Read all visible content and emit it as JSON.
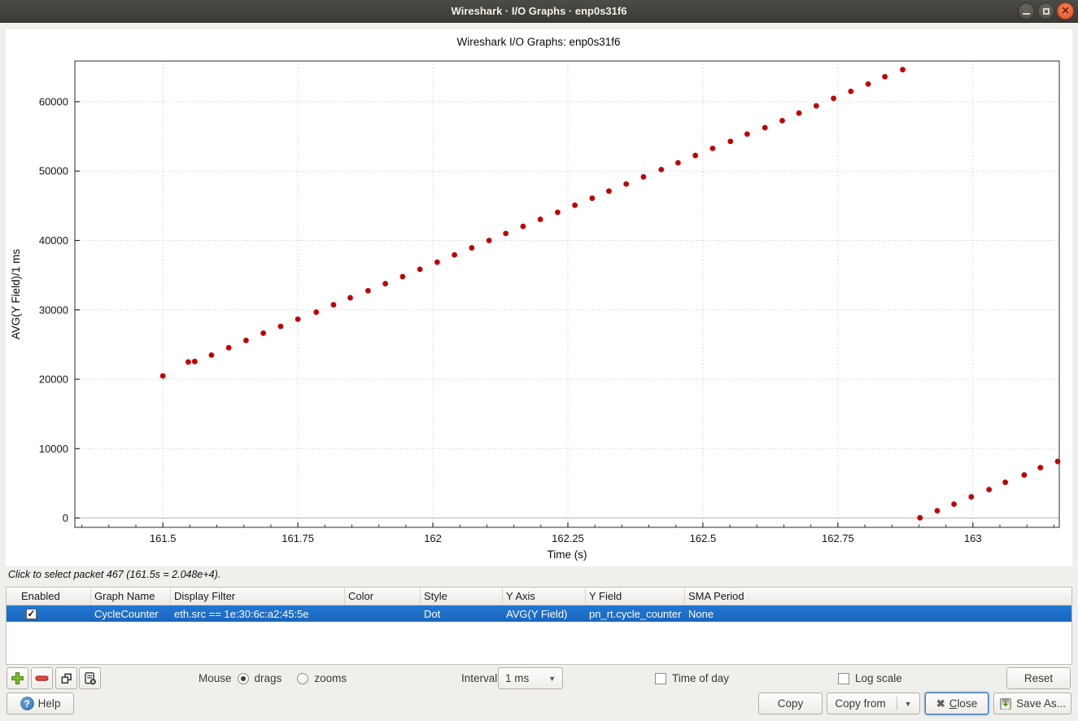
{
  "window": {
    "title": "Wireshark · I/O Graphs · enp0s31f6",
    "controls": {
      "minimize": "minimize",
      "maximize": "maximize",
      "close": "close"
    }
  },
  "chart_data": {
    "type": "scatter",
    "title": "Wireshark I/O Graphs: enp0s31f6",
    "xlabel": "Time (s)",
    "ylabel": "AVG(Y Field)/1 ms",
    "xlim": [
      161.337,
      163.16
    ],
    "ylim": [
      -1340,
      65860
    ],
    "x_major_ticks": [
      161.5,
      161.75,
      162,
      162.25,
      162.5,
      162.75,
      163
    ],
    "x_tick_labels": [
      "161.5",
      "161.75",
      "162",
      "162.25",
      "162.5",
      "162.75",
      "163"
    ],
    "x_minor_step": 0.05,
    "y_major_ticks": [
      0,
      10000,
      20000,
      30000,
      40000,
      50000,
      60000
    ],
    "grid": "dotted",
    "legend": "none",
    "point_color": "#c00303",
    "series": [
      {
        "name": "CycleCounter",
        "style": "dot",
        "points": [
          [
            161.5,
            20480
          ],
          [
            161.547,
            22500
          ],
          [
            161.559,
            22560
          ],
          [
            161.59,
            23480
          ],
          [
            161.622,
            24540
          ],
          [
            161.654,
            25600
          ],
          [
            161.686,
            26640
          ],
          [
            161.718,
            27610
          ],
          [
            161.75,
            28650
          ],
          [
            161.784,
            29670
          ],
          [
            161.816,
            30730
          ],
          [
            161.847,
            31740
          ],
          [
            161.88,
            32760
          ],
          [
            161.912,
            33780
          ],
          [
            161.944,
            34790
          ],
          [
            161.976,
            35850
          ],
          [
            162.008,
            36870
          ],
          [
            162.04,
            37920
          ],
          [
            162.072,
            38940
          ],
          [
            162.104,
            40000
          ],
          [
            162.135,
            41010
          ],
          [
            162.167,
            42030
          ],
          [
            162.199,
            43040
          ],
          [
            162.231,
            44060
          ],
          [
            162.263,
            45080
          ],
          [
            162.295,
            46090
          ],
          [
            162.326,
            47120
          ],
          [
            162.358,
            48140
          ],
          [
            162.39,
            49160
          ],
          [
            162.423,
            50215
          ],
          [
            162.454,
            51190
          ],
          [
            162.486,
            52250
          ],
          [
            162.518,
            53270
          ],
          [
            162.551,
            54280
          ],
          [
            162.582,
            55335
          ],
          [
            162.615,
            56250
          ],
          [
            162.647,
            57270
          ],
          [
            162.678,
            58360
          ],
          [
            162.71,
            59400
          ],
          [
            162.742,
            60480
          ],
          [
            162.774,
            61490
          ],
          [
            162.806,
            62550
          ],
          [
            162.837,
            63600
          ],
          [
            162.87,
            64620
          ],
          [
            162.902,
            30
          ],
          [
            162.934,
            1050
          ],
          [
            162.965,
            2000
          ],
          [
            162.997,
            3050
          ],
          [
            163.03,
            4100
          ],
          [
            163.06,
            5150
          ],
          [
            163.095,
            6200
          ],
          [
            163.125,
            7260
          ],
          [
            163.157,
            8150
          ]
        ]
      }
    ]
  },
  "status_text": "Click to select packet 467 (161.5s = 2.048e+4).",
  "table": {
    "columns": [
      "Enabled",
      "Graph Name",
      "Display Filter",
      "Color",
      "Style",
      "Y Axis",
      "Y Field",
      "SMA Period"
    ],
    "rows": [
      {
        "enabled": true,
        "graph_name": "CycleCounter",
        "display_filter": "eth.src == 1e:30:6c:a2:45:5e",
        "color": "#a62a30",
        "style": "Dot",
        "y_axis": "AVG(Y Field)",
        "y_field": "pn_rt.cycle_counter",
        "sma_period": "None",
        "selected": true
      }
    ]
  },
  "controls": {
    "mouse_label": "Mouse",
    "radio_drags": "drags",
    "radio_zooms": "zooms",
    "mouse_selected": "drags",
    "interval_label": "Interval",
    "interval_value": "1 ms",
    "time_of_day_label": "Time of day",
    "time_of_day_checked": false,
    "log_scale_label": "Log scale",
    "log_scale_checked": false,
    "reset_label": "Reset"
  },
  "footer": {
    "help": "Help",
    "copy": "Copy",
    "copy_from": "Copy from",
    "close": "Close",
    "save_as": "Save As..."
  }
}
